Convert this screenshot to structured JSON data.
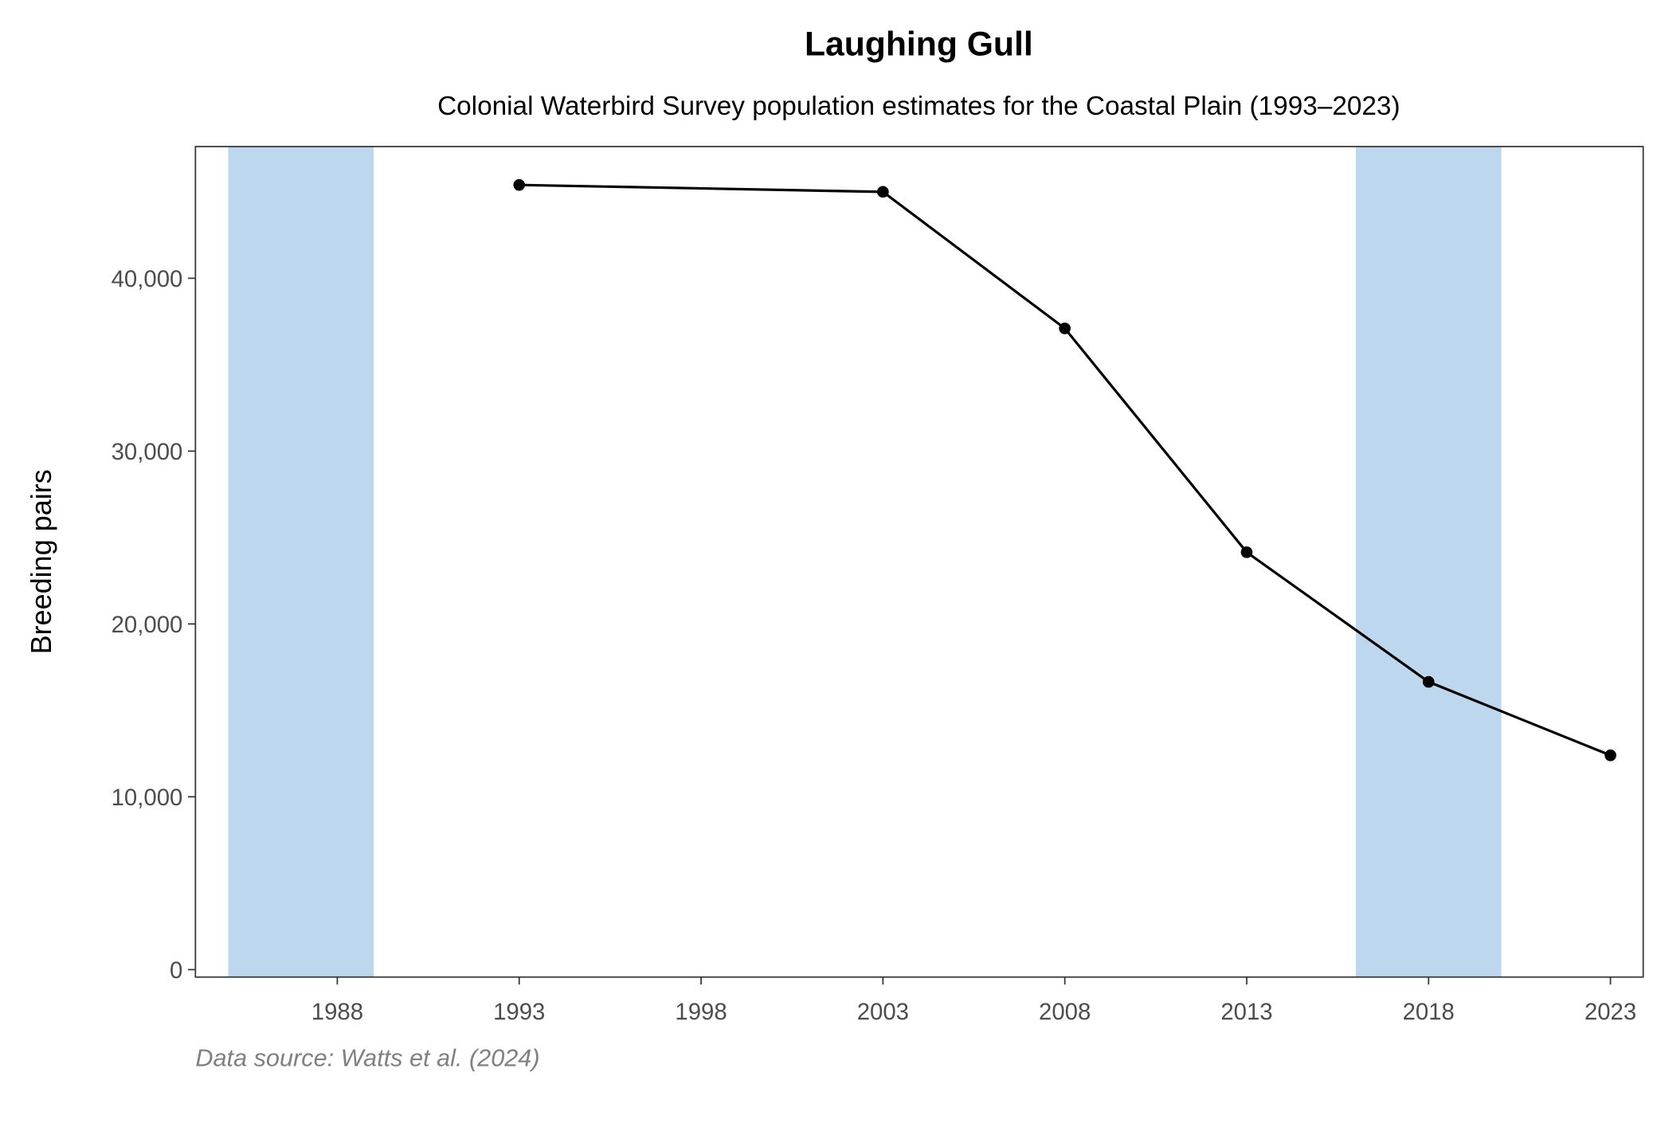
{
  "chart_data": {
    "type": "line",
    "title": "Laughing Gull",
    "subtitle": "Colonial Waterbird Survey population estimates for the Coastal Plain (1993–2023)",
    "xlabel": "",
    "ylabel": "Breeding pairs",
    "caption": "Data source: Watts et al. (2024)",
    "xlim": [
      1984.1,
      2023.9
    ],
    "ylim": [
      -430,
      47620
    ],
    "x_ticks": [
      1988,
      1993,
      1998,
      2003,
      2008,
      2013,
      2018,
      2023
    ],
    "x_tick_labels": [
      "1988",
      "1993",
      "1998",
      "2003",
      "2008",
      "2013",
      "2018",
      "2023"
    ],
    "y_ticks": [
      0,
      10000,
      20000,
      30000,
      40000
    ],
    "y_tick_labels": [
      "0",
      "10,000",
      "20,000",
      "30,000",
      "40,000"
    ],
    "grid": false,
    "shaded_periods": [
      [
        1985,
        1989
      ],
      [
        2016,
        2020
      ]
    ],
    "series": [
      {
        "name": "Breeding pairs",
        "x": [
          1993,
          2003,
          2008,
          2013,
          2018,
          2023
        ],
        "y": [
          45400,
          45000,
          37100,
          24150,
          16650,
          12400
        ]
      }
    ],
    "colors": {
      "line": "#000000",
      "shade": "#bdd7ee",
      "axis_text": "#4d4d4d",
      "caption": "#808080"
    }
  }
}
